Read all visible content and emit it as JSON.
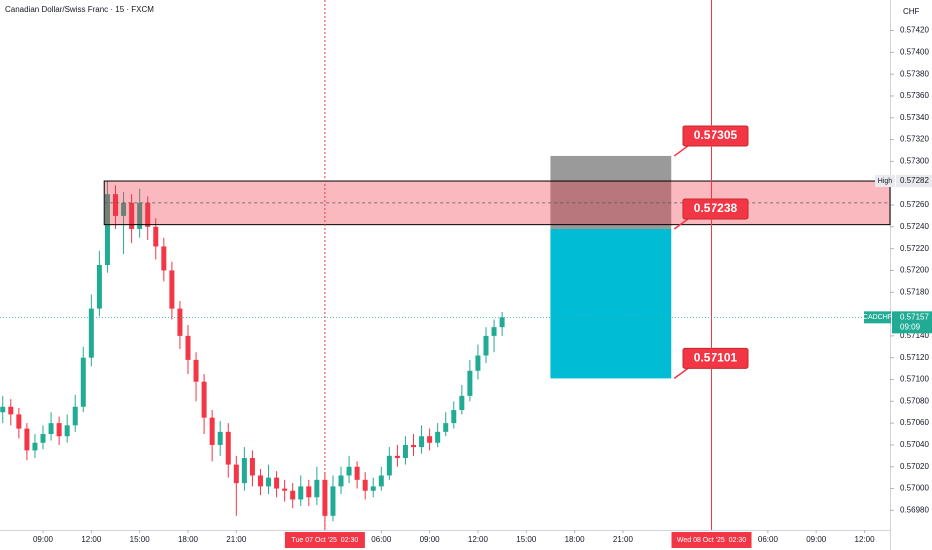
{
  "chart_data": {
    "type": "candlestick",
    "title": "Canadian Dollar/Swiss Franc · 15 · FXCM",
    "currency": "CHF",
    "colors": {
      "up": "#22ab94",
      "down": "#f23645"
    },
    "x": [
      6.5,
      7,
      7.5,
      8,
      8.5,
      9,
      9.5,
      10,
      10.5,
      11,
      11.5,
      12,
      12.5,
      13,
      13.5,
      14,
      14.5,
      15,
      15.5,
      16,
      16.5,
      17,
      17.5,
      18,
      18.5,
      19,
      19.5,
      20,
      20.5,
      21,
      21.5,
      22,
      22.5,
      23,
      23.5,
      24,
      24.5,
      25,
      25.5,
      26,
      26.5,
      27,
      27.5,
      28,
      28.5,
      29,
      29.5,
      30,
      30.5,
      31,
      31.5,
      32,
      32.5,
      33,
      33.5,
      34,
      34.5,
      35,
      35.5,
      36,
      36.5,
      37,
      37.5
    ],
    "open": [
      0.5707,
      0.57075,
      0.57068,
      0.57055,
      0.57035,
      0.57042,
      0.5705,
      0.5706,
      0.57048,
      0.57058,
      0.57075,
      0.5712,
      0.57165,
      0.57205,
      0.5727,
      0.5725,
      0.57262,
      0.57238,
      0.57262,
      0.5724,
      0.57222,
      0.572,
      0.57165,
      0.5714,
      0.57118,
      0.57098,
      0.57065,
      0.5704,
      0.57052,
      0.57022,
      0.57005,
      0.57028,
      0.57012,
      0.57002,
      0.5701,
      0.57,
      0.56998,
      0.5699,
      0.57002,
      0.56992,
      0.57008,
      0.56975,
      0.57002,
      0.57012,
      0.5702,
      0.57008,
      0.56998,
      0.57002,
      0.57012,
      0.5703,
      0.57028,
      0.5704,
      0.57038,
      0.57048,
      0.57042,
      0.57052,
      0.5706,
      0.57072,
      0.57085,
      0.57108,
      0.57122,
      0.5714,
      0.57148
    ],
    "high": [
      0.57085,
      0.57082,
      0.57074,
      0.5706,
      0.5705,
      0.57058,
      0.5707,
      0.57066,
      0.57068,
      0.57086,
      0.5713,
      0.57178,
      0.57218,
      0.57282,
      0.57278,
      0.57272,
      0.5727,
      0.57275,
      0.57268,
      0.57248,
      0.5723,
      0.57208,
      0.57172,
      0.5715,
      0.57125,
      0.57105,
      0.57072,
      0.57062,
      0.5706,
      0.5703,
      0.57038,
      0.57035,
      0.57018,
      0.57022,
      0.57016,
      0.57008,
      0.57005,
      0.57012,
      0.57008,
      0.5702,
      0.57015,
      0.57012,
      0.5702,
      0.5703,
      0.57025,
      0.57015,
      0.5701,
      0.5702,
      0.57038,
      0.5704,
      0.57048,
      0.5705,
      0.57058,
      0.57055,
      0.5706,
      0.5707,
      0.5708,
      0.57095,
      0.57118,
      0.57132,
      0.57148,
      0.57155,
      0.57162
    ],
    "low": [
      0.5706,
      0.57058,
      0.57046,
      0.57026,
      0.57028,
      0.57036,
      0.57044,
      0.5704,
      0.57042,
      0.57052,
      0.5707,
      0.57112,
      0.57158,
      0.57198,
      0.57238,
      0.57215,
      0.57225,
      0.5723,
      0.57228,
      0.5721,
      0.5719,
      0.57155,
      0.57128,
      0.57105,
      0.5708,
      0.5705,
      0.57025,
      0.5703,
      0.5701,
      0.56975,
      0.56998,
      0.57002,
      0.56994,
      0.56995,
      0.56992,
      0.56988,
      0.56982,
      0.56984,
      0.56984,
      0.56985,
      0.56962,
      0.5697,
      0.56995,
      0.57005,
      0.57,
      0.5699,
      0.56992,
      0.56998,
      0.57008,
      0.5702,
      0.57022,
      0.5703,
      0.57032,
      0.57035,
      0.57038,
      0.57048,
      0.57055,
      0.57068,
      0.5708,
      0.571,
      0.57115,
      0.57125,
      0.5714
    ],
    "close": [
      0.57075,
      0.57068,
      0.57055,
      0.57035,
      0.57042,
      0.5705,
      0.5706,
      0.57048,
      0.57058,
      0.57075,
      0.5712,
      0.57165,
      0.57205,
      0.5727,
      0.5725,
      0.57262,
      0.57238,
      0.57262,
      0.5724,
      0.57222,
      0.572,
      0.57165,
      0.5714,
      0.57118,
      0.57098,
      0.57065,
      0.5704,
      0.57052,
      0.57022,
      0.57005,
      0.57028,
      0.57012,
      0.57002,
      0.5701,
      0.57,
      0.56998,
      0.5699,
      0.57002,
      0.56992,
      0.57008,
      0.56975,
      0.57002,
      0.57012,
      0.5702,
      0.57008,
      0.56998,
      0.57002,
      0.57012,
      0.5703,
      0.57028,
      0.5704,
      0.57038,
      0.57048,
      0.57042,
      0.57052,
      0.5706,
      0.57072,
      0.57085,
      0.57108,
      0.57122,
      0.5714,
      0.57148,
      0.57157
    ],
    "xlim": [
      6.33,
      61.58
    ],
    "xticks": [
      {
        "value": 9,
        "label": "09:00"
      },
      {
        "value": 12,
        "label": "12:00"
      },
      {
        "value": 15,
        "label": "15:00"
      },
      {
        "value": 18,
        "label": "18:00"
      },
      {
        "value": 21,
        "label": "21:00"
      },
      {
        "value": 30,
        "label": "06:00"
      },
      {
        "value": 33,
        "label": "09:00"
      },
      {
        "value": 36,
        "label": "12:00"
      },
      {
        "value": 39,
        "label": "15:00"
      },
      {
        "value": 42,
        "label": "18:00"
      },
      {
        "value": 45,
        "label": "21:00"
      },
      {
        "value": 54,
        "label": "06:00"
      },
      {
        "value": 57,
        "label": "09:00"
      },
      {
        "value": 60,
        "label": "12:00"
      }
    ],
    "ylim": [
      0.56962,
      0.57448
    ],
    "yticks": [
      {
        "value": 0.5742,
        "label": "0.57420"
      },
      {
        "value": 0.574,
        "label": "0.57400"
      },
      {
        "value": 0.5738,
        "label": "0.57380"
      },
      {
        "value": 0.5736,
        "label": "0.57360"
      },
      {
        "value": 0.5734,
        "label": "0.57340"
      },
      {
        "value": 0.5732,
        "label": "0.57320"
      },
      {
        "value": 0.573,
        "label": "0.57300"
      },
      {
        "value": 0.5726,
        "label": "0.57260"
      },
      {
        "value": 0.5724,
        "label": "0.57240"
      },
      {
        "value": 0.5722,
        "label": "0.57220"
      },
      {
        "value": 0.572,
        "label": "0.57200"
      },
      {
        "value": 0.5718,
        "label": "0.57180"
      },
      {
        "value": 0.5714,
        "label": "0.57140"
      },
      {
        "value": 0.5712,
        "label": "0.57120"
      },
      {
        "value": 0.571,
        "label": "0.57100"
      },
      {
        "value": 0.5708,
        "label": "0.57080"
      },
      {
        "value": 0.5706,
        "label": "0.57060"
      },
      {
        "value": 0.5704,
        "label": "0.57040"
      },
      {
        "value": 0.5702,
        "label": "0.57020"
      },
      {
        "value": 0.57,
        "label": "0.57000"
      },
      {
        "value": 0.5698,
        "label": "0.56980"
      }
    ],
    "zone": {
      "start": 12.8,
      "top": 0.57282,
      "bottom": 0.57242
    },
    "position": {
      "start": 40.5,
      "end": 48,
      "stop": 0.57305,
      "entry": 0.57238,
      "target": 0.57101
    },
    "high_marker": {
      "label": "High",
      "value": 0.57282
    },
    "last": {
      "symbol": "CADCHF",
      "value": 0.57157,
      "countdown": "09:09"
    },
    "markers": [
      {
        "x": 26.5,
        "label": "Tue 07 Oct '25  02:30",
        "style": "dashed"
      },
      {
        "x": 50.5,
        "label": "Wed 08 Oct '25  02:30",
        "style": "solid"
      }
    ]
  }
}
